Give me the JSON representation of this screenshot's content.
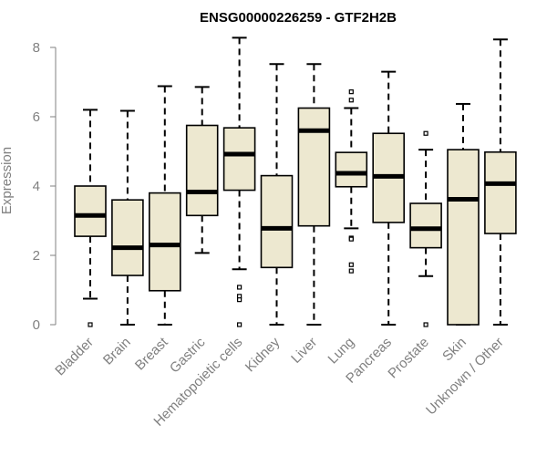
{
  "chart_data": {
    "type": "boxplot",
    "title": "ENSG00000226259 - GTF2H2B",
    "xlabel": "",
    "ylabel": "Expression",
    "ylim": [
      0,
      8.3
    ],
    "yticks": [
      0,
      2,
      4,
      6,
      8
    ],
    "grid": false,
    "box_fill": "#ede8d0",
    "box_stroke": "#000000",
    "axis_color": "#808080",
    "categories": [
      "Bladder",
      "Brain",
      "Breast",
      "Gastric",
      "Hematopoietic cells",
      "Kidney",
      "Liver",
      "Lung",
      "Pancreas",
      "Prostate",
      "Skin",
      "Unknown / Other"
    ],
    "boxes": [
      {
        "whisker_low": 0.75,
        "q1": 2.55,
        "median": 3.15,
        "q3": 4.0,
        "whisker_high": 6.2,
        "outliers": [
          0.0
        ]
      },
      {
        "whisker_low": 0.0,
        "q1": 1.42,
        "median": 2.22,
        "q3": 3.6,
        "whisker_high": 6.17,
        "outliers": []
      },
      {
        "whisker_low": 0.0,
        "q1": 0.98,
        "median": 2.3,
        "q3": 3.8,
        "whisker_high": 6.88,
        "outliers": []
      },
      {
        "whisker_low": 2.07,
        "q1": 3.15,
        "median": 3.83,
        "q3": 5.75,
        "whisker_high": 6.86,
        "outliers": []
      },
      {
        "whisker_low": 1.6,
        "q1": 3.88,
        "median": 4.92,
        "q3": 5.68,
        "whisker_high": 8.28,
        "outliers": [
          1.08,
          0.82,
          0.72,
          0.0
        ]
      },
      {
        "whisker_low": 0.0,
        "q1": 1.65,
        "median": 2.78,
        "q3": 4.3,
        "whisker_high": 7.52,
        "outliers": []
      },
      {
        "whisker_low": 0.0,
        "q1": 2.85,
        "median": 5.6,
        "q3": 6.25,
        "whisker_high": 7.52,
        "outliers": []
      },
      {
        "whisker_low": 2.78,
        "q1": 3.98,
        "median": 4.37,
        "q3": 4.97,
        "whisker_high": 6.25,
        "outliers": [
          6.72,
          6.48,
          2.5,
          2.47,
          1.73,
          1.55
        ]
      },
      {
        "whisker_low": 0.0,
        "q1": 2.95,
        "median": 4.28,
        "q3": 5.52,
        "whisker_high": 7.3,
        "outliers": []
      },
      {
        "whisker_low": 1.4,
        "q1": 2.22,
        "median": 2.77,
        "q3": 3.5,
        "whisker_high": 5.05,
        "outliers": [
          5.52,
          0.0
        ]
      },
      {
        "whisker_low": 0.0,
        "q1": 0.0,
        "median": 3.62,
        "q3": 5.05,
        "whisker_high": 6.37,
        "outliers": []
      },
      {
        "whisker_low": 0.0,
        "q1": 2.63,
        "median": 4.07,
        "q3": 4.98,
        "whisker_high": 8.23,
        "outliers": []
      }
    ]
  }
}
